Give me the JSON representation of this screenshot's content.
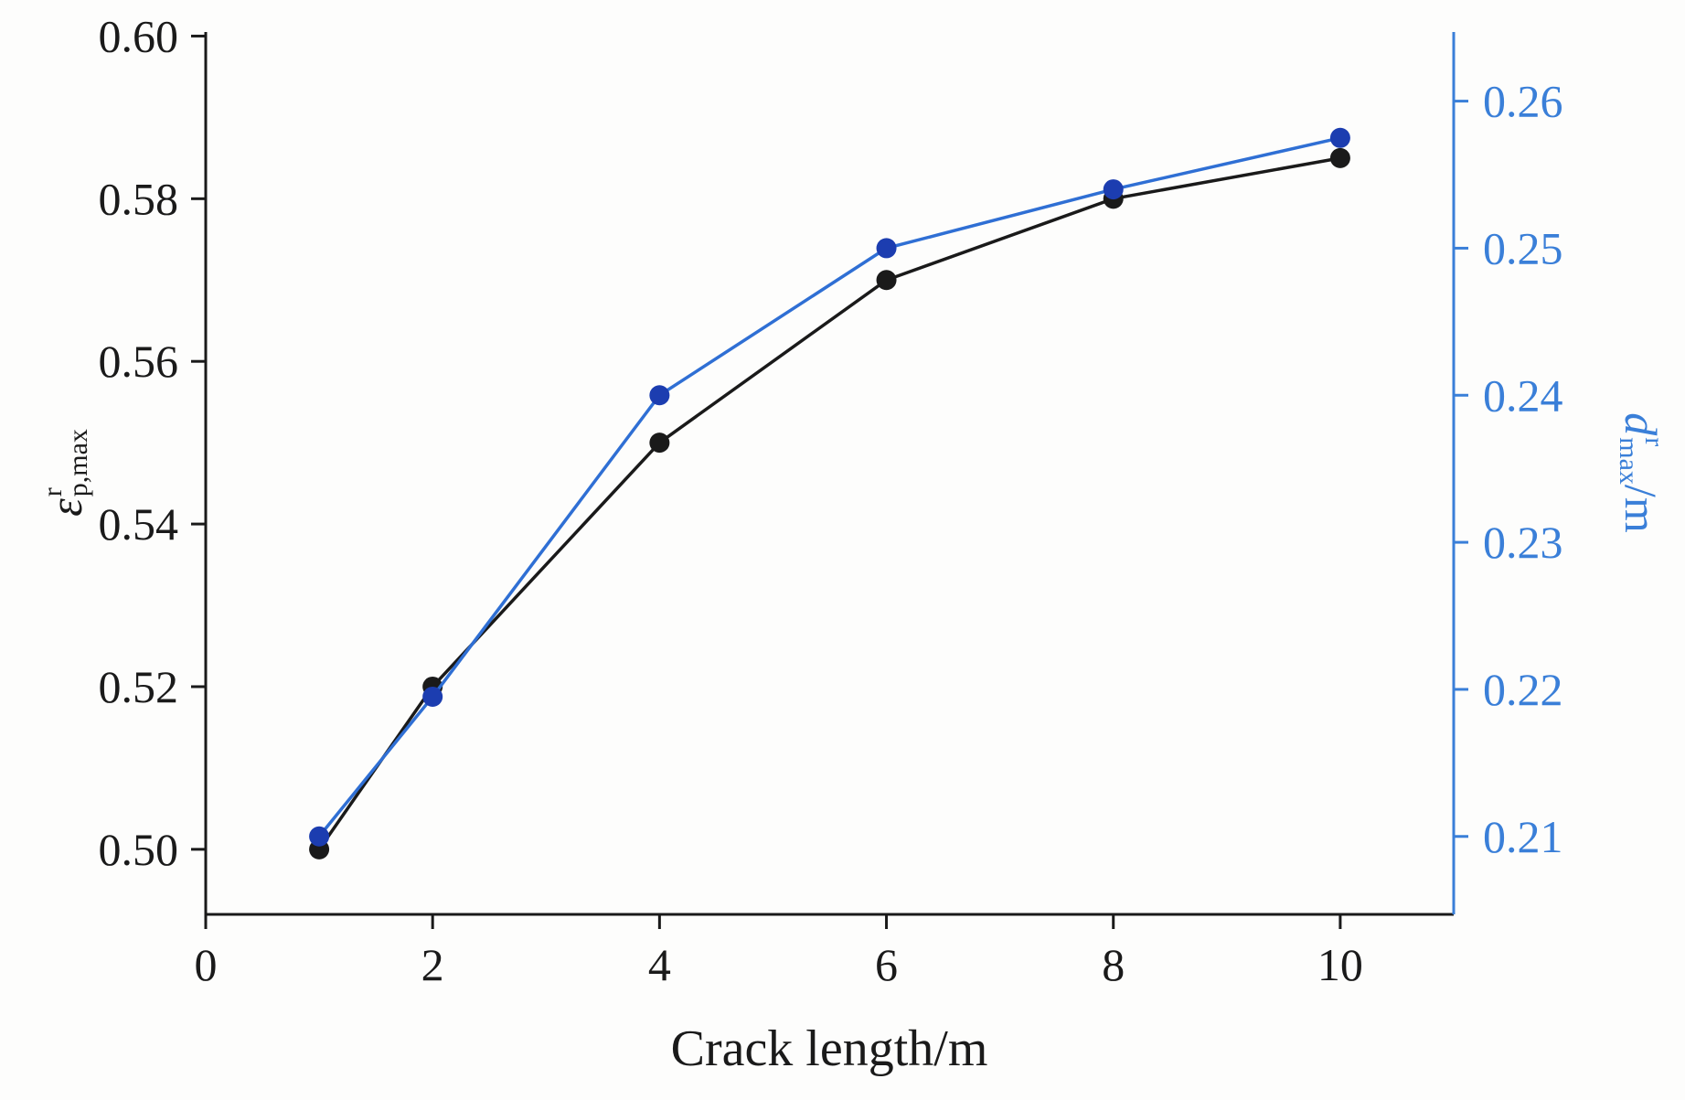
{
  "chart_data": {
    "type": "line",
    "title": "",
    "xlabel": "Crack length/m",
    "grid": false,
    "legend": "none",
    "x": [
      1,
      2,
      4,
      6,
      8,
      10
    ],
    "xlim": [
      0,
      11
    ],
    "x_ticks": [
      0,
      2,
      4,
      6,
      8,
      10
    ],
    "series": [
      {
        "name": "epsilon-p-max-r (left axis)",
        "axis": "left",
        "color": "#1a1a1a",
        "marker_color": "#1a1a1a",
        "values": [
          0.5,
          0.52,
          0.55,
          0.57,
          0.58,
          0.585
        ]
      },
      {
        "name": "d-max-r (right axis)",
        "axis": "right",
        "color": "#2f6fd4",
        "marker_color": "#1c3db0",
        "values": [
          0.21,
          0.2195,
          0.24,
          0.25,
          0.254,
          0.2575
        ]
      }
    ],
    "left_axis": {
      "ticks": [
        0.5,
        0.52,
        0.54,
        0.56,
        0.58,
        0.6
      ],
      "lim": [
        0.492,
        0.6005
      ],
      "label": {
        "symbol": "ε",
        "sup": "r",
        "sub": "p,max"
      }
    },
    "right_axis": {
      "ticks": [
        0.21,
        0.22,
        0.23,
        0.24,
        0.25,
        0.26
      ],
      "lim": [
        0.2047,
        0.2647
      ],
      "color": "#3a7fd8",
      "label": {
        "symbol": "d",
        "sup": "r",
        "sub": "max",
        "suffix": "/m"
      }
    }
  }
}
